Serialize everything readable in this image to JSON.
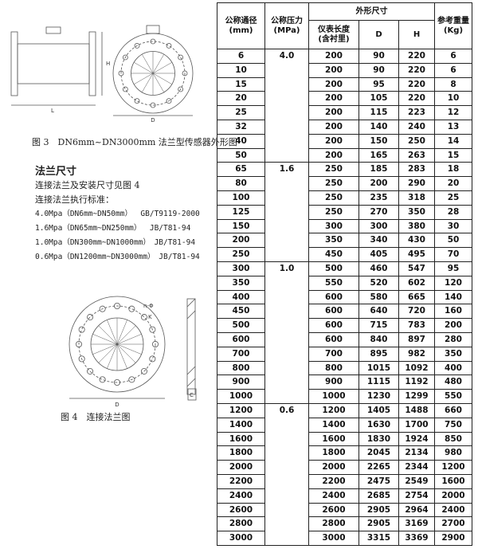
{
  "figures": {
    "figure3_labels": [
      "L",
      "H",
      "D"
    ],
    "figure3_caption": "图 3　DN6mm~DN3000mm 法兰型传感器外形图",
    "figure4_labels": [
      "n-Φ",
      "K",
      "D",
      "C"
    ],
    "figure4_caption": "图 4　连接法兰图"
  },
  "text": {
    "section_title": "法兰尺寸",
    "lines": [
      "连接法兰及安装尺寸见图 4",
      "连接法兰执行标准："
    ],
    "standards": [
      "4.0Mpa（DN6mm~DN50mm）　 GB/T9119-2000",
      "1.6Mpa（DN65mm~DN250mm）　 JB/T81-94",
      "1.0Mpa（DN300mm~DN1000mm）　JB/T81-94",
      "0.6Mpa（DN1200mm~DN3000mm）　JB/T81-94"
    ]
  },
  "table": {
    "header": {
      "nominal_diameter": [
        "公称通径",
        "(mm)"
      ],
      "nominal_pressure": [
        "公称压力",
        "(MPa)"
      ],
      "dimensions": "外形尺寸",
      "length": [
        "仪表长度",
        "(含衬里)"
      ],
      "d": "D",
      "h": "H",
      "weight": [
        "参考重量",
        "(Kg)"
      ]
    },
    "groups": [
      {
        "pressure": "4.0",
        "rows": [
          [
            6,
            200,
            90,
            220,
            6
          ],
          [
            10,
            200,
            90,
            220,
            6
          ],
          [
            15,
            200,
            95,
            220,
            8
          ],
          [
            20,
            200,
            105,
            220,
            10
          ],
          [
            25,
            200,
            115,
            223,
            12
          ],
          [
            32,
            200,
            140,
            240,
            13
          ],
          [
            40,
            200,
            150,
            250,
            14
          ],
          [
            50,
            200,
            165,
            263,
            15
          ]
        ]
      },
      {
        "pressure": "1.6",
        "rows": [
          [
            65,
            250,
            185,
            283,
            18
          ],
          [
            80,
            250,
            200,
            290,
            20
          ],
          [
            100,
            250,
            235,
            318,
            25
          ],
          [
            125,
            250,
            270,
            350,
            28
          ],
          [
            150,
            300,
            300,
            380,
            30
          ],
          [
            200,
            350,
            340,
            430,
            50
          ],
          [
            250,
            450,
            405,
            495,
            70
          ]
        ]
      },
      {
        "pressure": "1.0",
        "rows": [
          [
            300,
            500,
            460,
            547,
            95
          ],
          [
            350,
            550,
            520,
            602,
            120
          ],
          [
            400,
            600,
            580,
            665,
            140
          ],
          [
            450,
            600,
            640,
            720,
            160
          ],
          [
            500,
            600,
            715,
            783,
            200
          ],
          [
            600,
            600,
            840,
            897,
            280
          ],
          [
            700,
            700,
            895,
            982,
            350
          ],
          [
            800,
            800,
            1015,
            1092,
            400
          ],
          [
            900,
            900,
            1115,
            1192,
            480
          ],
          [
            1000,
            1000,
            1230,
            1299,
            550
          ]
        ]
      },
      {
        "pressure": "0.6",
        "rows": [
          [
            1200,
            1200,
            1405,
            1488,
            660
          ],
          [
            1400,
            1400,
            1630,
            1700,
            750
          ],
          [
            1600,
            1600,
            1830,
            1924,
            850
          ],
          [
            1800,
            1800,
            2045,
            2134,
            980
          ],
          [
            2000,
            2000,
            2265,
            2344,
            1200
          ],
          [
            2200,
            2200,
            2475,
            2549,
            1600
          ],
          [
            2400,
            2400,
            2685,
            2754,
            2000
          ],
          [
            2600,
            2600,
            2905,
            2964,
            2400
          ],
          [
            2800,
            2800,
            2905,
            3169,
            2700
          ],
          [
            3000,
            3000,
            3315,
            3369,
            2900
          ]
        ]
      }
    ]
  }
}
